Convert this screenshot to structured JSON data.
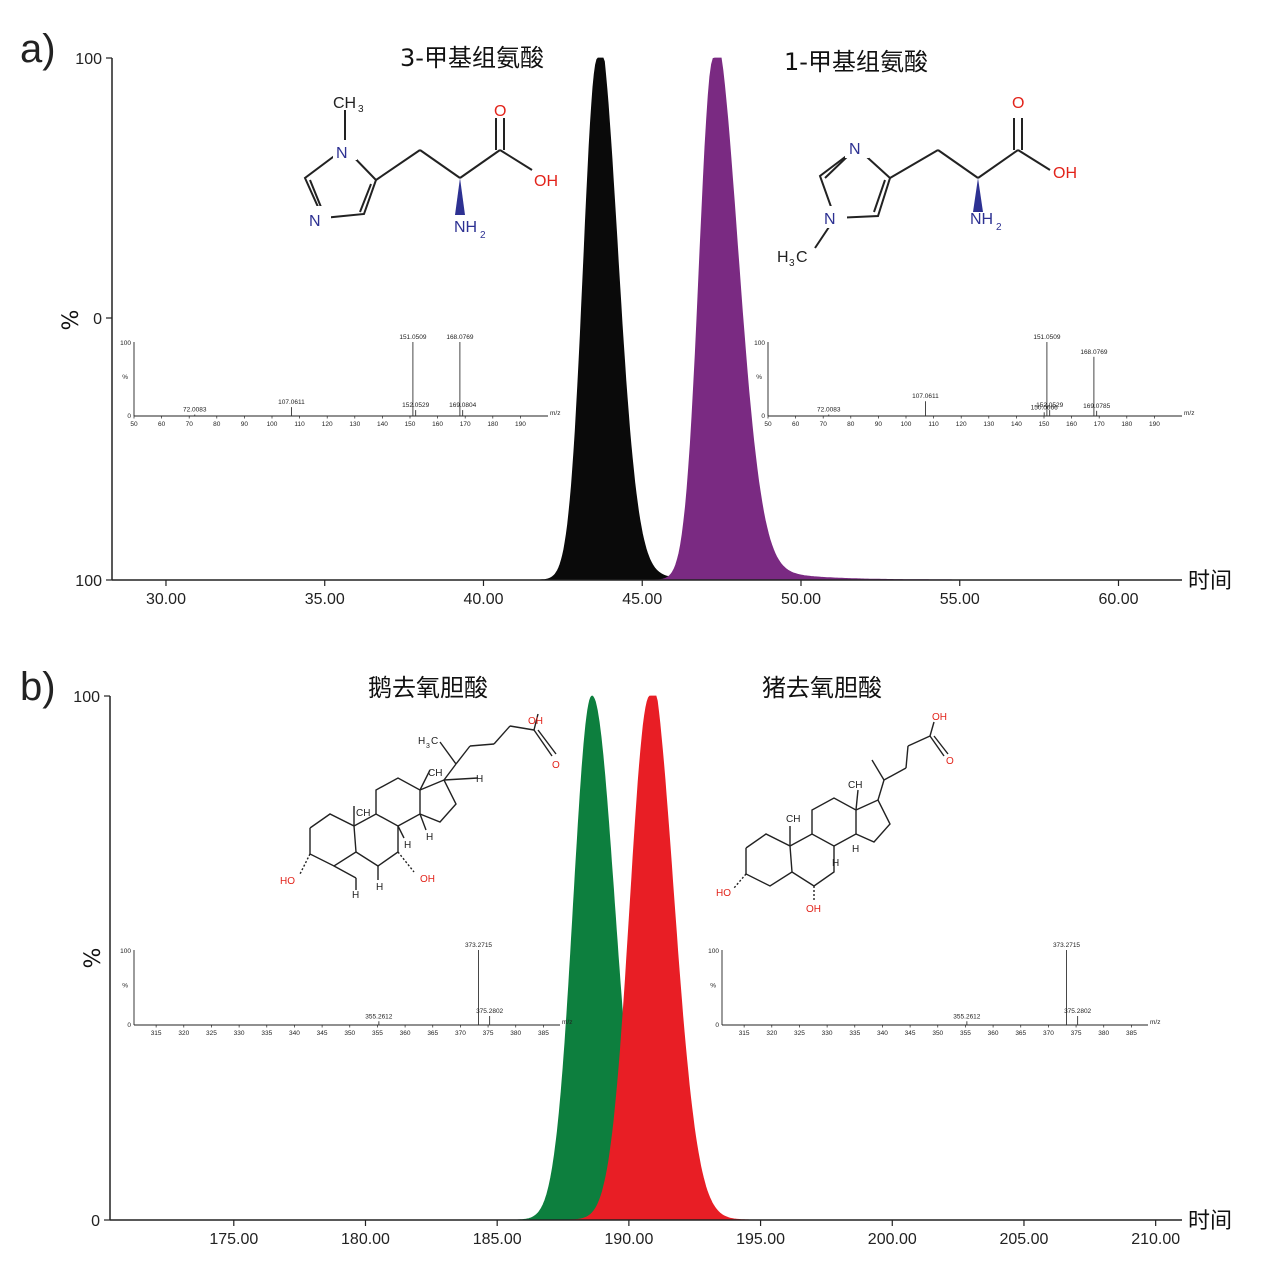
{
  "chart_data": [
    {
      "panel": "a)",
      "type": "area",
      "xlabel": "时间",
      "ylabel": "%",
      "xlim": [
        28.3,
        62.0
      ],
      "ylim": [
        0,
        100
      ],
      "y_tick_labels": [
        "100",
        "0",
        "100"
      ],
      "x_ticks": [
        30,
        35,
        40,
        45,
        50,
        55,
        60
      ],
      "x_tick_labels": [
        "30.00",
        "35.00",
        "40.00",
        "45.00",
        "50.00",
        "55.00",
        "60.00"
      ],
      "series": [
        {
          "name": "3-甲基组氨酸",
          "color": "#0a0a0a",
          "peak_x": 43.6,
          "peak_y": 100,
          "sigma_left": 0.45,
          "sigma_right": 0.62,
          "tail": 0.9
        },
        {
          "name": "1-甲基组氨酸",
          "color": "#7a2a82",
          "peak_x": 47.25,
          "peak_y": 100,
          "sigma_left": 0.45,
          "sigma_right": 0.75,
          "tail": 1.4
        }
      ],
      "insets": [
        {
          "xlim": [
            50,
            200
          ],
          "x_tick_labels": [
            "50",
            "60",
            "70",
            "80",
            "90",
            "100",
            "110",
            "120",
            "130",
            "140",
            "150",
            "160",
            "170",
            "180",
            "190"
          ],
          "x_ticks": [
            50,
            60,
            70,
            80,
            90,
            100,
            110,
            120,
            130,
            140,
            150,
            160,
            170,
            180,
            190
          ],
          "y_top": "100",
          "y_mid": "%",
          "y_bottom": "0",
          "unit": "m/z",
          "peaks": [
            {
              "mz": 72.0083,
              "rel": 2,
              "label": "72.0083"
            },
            {
              "mz": 107.0611,
              "rel": 12,
              "label": "107.0611"
            },
            {
              "mz": 151.0509,
              "rel": 100,
              "label": "151.0509"
            },
            {
              "mz": 152.0529,
              "rel": 8,
              "label": "152.0529"
            },
            {
              "mz": 168.0769,
              "rel": 100,
              "label": "168.0769"
            },
            {
              "mz": 169.0804,
              "rel": 8,
              "label": "169.0804"
            }
          ]
        },
        {
          "xlim": [
            50,
            200
          ],
          "x_tick_labels": [
            "50",
            "60",
            "70",
            "80",
            "90",
            "100",
            "110",
            "120",
            "130",
            "140",
            "150",
            "160",
            "170",
            "180",
            "190"
          ],
          "x_ticks": [
            50,
            60,
            70,
            80,
            90,
            100,
            110,
            120,
            130,
            140,
            150,
            160,
            170,
            180,
            190
          ],
          "y_top": "100",
          "y_mid": "%",
          "y_bottom": "0",
          "unit": "m/z",
          "peaks": [
            {
              "mz": 72.0083,
              "rel": 2,
              "label": "72.0083"
            },
            {
              "mz": 107.0611,
              "rel": 20,
              "label": "107.0611"
            },
            {
              "mz": 150.0666,
              "rel": 5,
              "label": "150.0666"
            },
            {
              "mz": 151.0509,
              "rel": 100,
              "label": "151.0509"
            },
            {
              "mz": 152.0529,
              "rel": 8,
              "label": "152.0529"
            },
            {
              "mz": 168.0769,
              "rel": 80,
              "label": "168.0769"
            },
            {
              "mz": 169.0785,
              "rel": 7,
              "label": "169.0785"
            }
          ]
        }
      ]
    },
    {
      "panel": "b)",
      "type": "area",
      "xlabel": "时间",
      "ylabel": "%",
      "xlim": [
        170.3,
        211.0
      ],
      "ylim": [
        0,
        100
      ],
      "y_tick_labels": [
        "100",
        "0"
      ],
      "x_ticks": [
        175,
        180,
        185,
        190,
        195,
        200,
        205,
        210
      ],
      "x_tick_labels": [
        "175.00",
        "180.00",
        "185.00",
        "190.00",
        "195.00",
        "200.00",
        "205.00",
        "210.00"
      ],
      "series": [
        {
          "name": "鹅去氧胆酸",
          "color": "#0d7f3e",
          "peak_x": 188.6,
          "peak_y": 100,
          "sigma_left": 0.7,
          "sigma_right": 0.85,
          "tail": 0
        },
        {
          "name": "猪去氧胆酸",
          "color": "#e81e25",
          "peak_x": 190.8,
          "peak_y": 100,
          "sigma_left": 0.75,
          "sigma_right": 0.9,
          "tail": 0.6
        }
      ],
      "insets": [
        {
          "xlim": [
            311,
            388
          ],
          "x_tick_labels": [
            "315",
            "320",
            "325",
            "330",
            "335",
            "340",
            "345",
            "350",
            "355",
            "360",
            "365",
            "370",
            "375",
            "380",
            "385"
          ],
          "x_ticks": [
            315,
            320,
            325,
            330,
            335,
            340,
            345,
            350,
            355,
            360,
            365,
            370,
            375,
            380,
            385
          ],
          "y_top": "100",
          "y_mid": "%",
          "y_bottom": "0",
          "unit": "m/z",
          "peaks": [
            {
              "mz": 355.2612,
              "rel": 5,
              "label": "355.2612"
            },
            {
              "mz": 373.2715,
              "rel": 100,
              "label": "373.2715"
            },
            {
              "mz": 375.2802,
              "rel": 12,
              "label": "375.2802"
            }
          ]
        },
        {
          "xlim": [
            311,
            388
          ],
          "x_tick_labels": [
            "315",
            "320",
            "325",
            "330",
            "335",
            "340",
            "345",
            "350",
            "355",
            "360",
            "365",
            "370",
            "375",
            "380",
            "385"
          ],
          "x_ticks": [
            315,
            320,
            325,
            330,
            335,
            340,
            345,
            350,
            355,
            360,
            365,
            370,
            375,
            380,
            385
          ],
          "y_top": "100",
          "y_mid": "%",
          "y_bottom": "0",
          "unit": "m/z",
          "peaks": [
            {
              "mz": 355.2612,
              "rel": 5,
              "label": "355.2612"
            },
            {
              "mz": 373.2715,
              "rel": 100,
              "label": "373.2715"
            },
            {
              "mz": 375.2802,
              "rel": 12,
              "label": "375.2802"
            }
          ]
        }
      ]
    }
  ],
  "structures": {
    "histidine_3": {
      "ch3": "CH",
      "sub3": "3",
      "n1": "N",
      "n2": "N",
      "o": "O",
      "oh": "OH",
      "nh2": "NH",
      "sub2": "2"
    },
    "histidine_1": {
      "n1": "N",
      "n2": "N",
      "o": "O",
      "oh": "OH",
      "nh2": "NH",
      "sub2": "2",
      "h3c": "H",
      "sub3": "3",
      "c": "C"
    },
    "cdca": {
      "oh_top": "OH",
      "o": "O",
      "h3c": "H",
      "sub3": "3",
      "c": "C",
      "ch3a": "CH",
      "ch3b": "CH",
      "h": "H",
      "ho": "HO",
      "oh_low": "OH"
    },
    "hdca": {
      "oh_top": "OH",
      "o": "O",
      "ch3": "CH",
      "sub3": "3",
      "h": "H",
      "ho": "HO",
      "oh_low": "OH"
    }
  },
  "colors": {
    "heteroN": "#2d3192",
    "heteroO": "#e2231a",
    "axis": "#222222"
  }
}
